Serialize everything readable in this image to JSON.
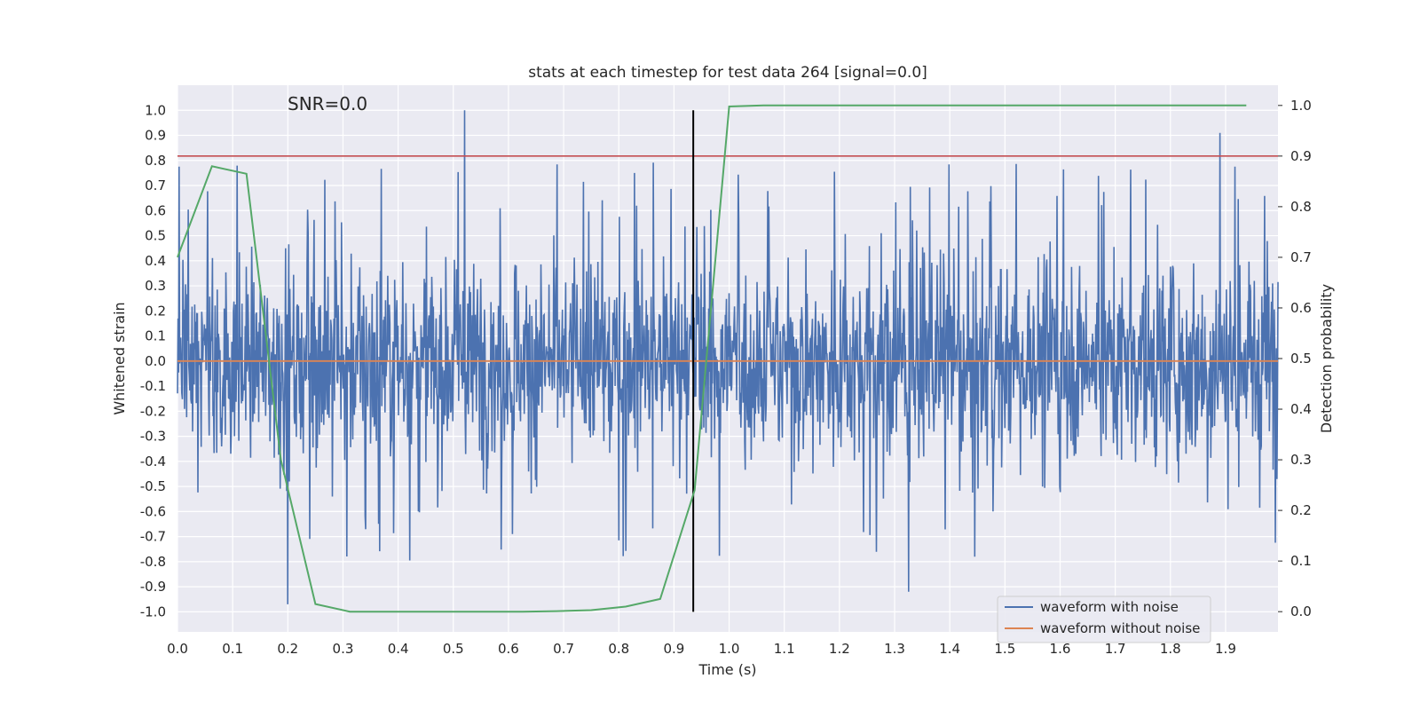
{
  "chart_data": {
    "type": "line",
    "title": "stats at each timestep for test data 264 [signal=0.0]",
    "annotation": "SNR=0.0",
    "xlabel": "Time (s)",
    "ylabel_left": "Whitened strain",
    "ylabel_right": "Detection probability",
    "xlim": [
      0.0,
      1.995
    ],
    "ylim_left": [
      -1.08,
      1.1
    ],
    "ylim_right": [
      -0.04,
      1.04
    ],
    "xticks": [
      "0.0",
      "0.1",
      "0.2",
      "0.3",
      "0.4",
      "0.5",
      "0.6",
      "0.7",
      "0.8",
      "0.9",
      "1.0",
      "1.1",
      "1.2",
      "1.3",
      "1.4",
      "1.5",
      "1.6",
      "1.7",
      "1.8",
      "1.9"
    ],
    "yticks_left": [
      "-1.0",
      "-0.9",
      "-0.8",
      "-0.7",
      "-0.6",
      "-0.5",
      "-0.4",
      "-0.3",
      "-0.2",
      "-0.1",
      "0.0",
      "0.1",
      "0.2",
      "0.3",
      "0.4",
      "0.5",
      "0.6",
      "0.7",
      "0.8",
      "0.9",
      "1.0"
    ],
    "yticks_right": [
      "0.0",
      "0.1",
      "0.2",
      "0.3",
      "0.4",
      "0.5",
      "0.6",
      "0.7",
      "0.8",
      "0.9",
      "1.0"
    ],
    "grid": true,
    "legend_position": "lower-right",
    "colors": {
      "background": "#eaeaf2",
      "grid": "#ffffff",
      "noisy": "#4c72b0",
      "clean": "#dd8452",
      "probability": "#55a868",
      "threshold": "#c44e52",
      "marker": "#000000"
    },
    "series": [
      {
        "name": "waveform with noise",
        "axis": "left",
        "description_sampling": "noise, amplitude within about ±1.0, sampled over 0.0–1.995 s",
        "sample_count": 2048,
        "notable_peaks": [
          [
            0.52,
            1.0
          ],
          [
            0.2,
            -0.97
          ],
          [
            1.325,
            -0.92
          ],
          [
            1.89,
            0.91
          ]
        ]
      },
      {
        "name": "waveform without noise",
        "axis": "left",
        "x": [
          0.0,
          1.995
        ],
        "y": [
          0.0,
          0.0
        ]
      },
      {
        "name": "detection probability",
        "axis": "right",
        "x": [
          0.0,
          0.0625,
          0.125,
          0.1875,
          0.25,
          0.3125,
          0.375,
          0.4375,
          0.5,
          0.5625,
          0.625,
          0.6875,
          0.75,
          0.8125,
          0.875,
          0.9375,
          1.0,
          1.0625,
          1.125,
          1.1875,
          1.25,
          1.3125,
          1.375,
          1.4375,
          1.5,
          1.5625,
          1.625,
          1.6875,
          1.75,
          1.8125,
          1.875,
          1.9375
        ],
        "y": [
          0.7,
          0.88,
          0.865,
          0.3,
          0.015,
          0.0,
          0.0,
          0.0,
          0.0,
          0.0,
          0.0,
          0.001,
          0.003,
          0.01,
          0.025,
          0.24,
          0.998,
          1.0,
          1.0,
          1.0,
          1.0,
          1.0,
          1.0,
          1.0,
          1.0,
          1.0,
          1.0,
          1.0,
          1.0,
          1.0,
          1.0,
          1.0
        ]
      }
    ],
    "threshold_line": {
      "axis": "right",
      "y": 0.9
    },
    "vertical_marker": {
      "x": 0.935,
      "y_range": [
        -1.0,
        1.0
      ]
    }
  }
}
